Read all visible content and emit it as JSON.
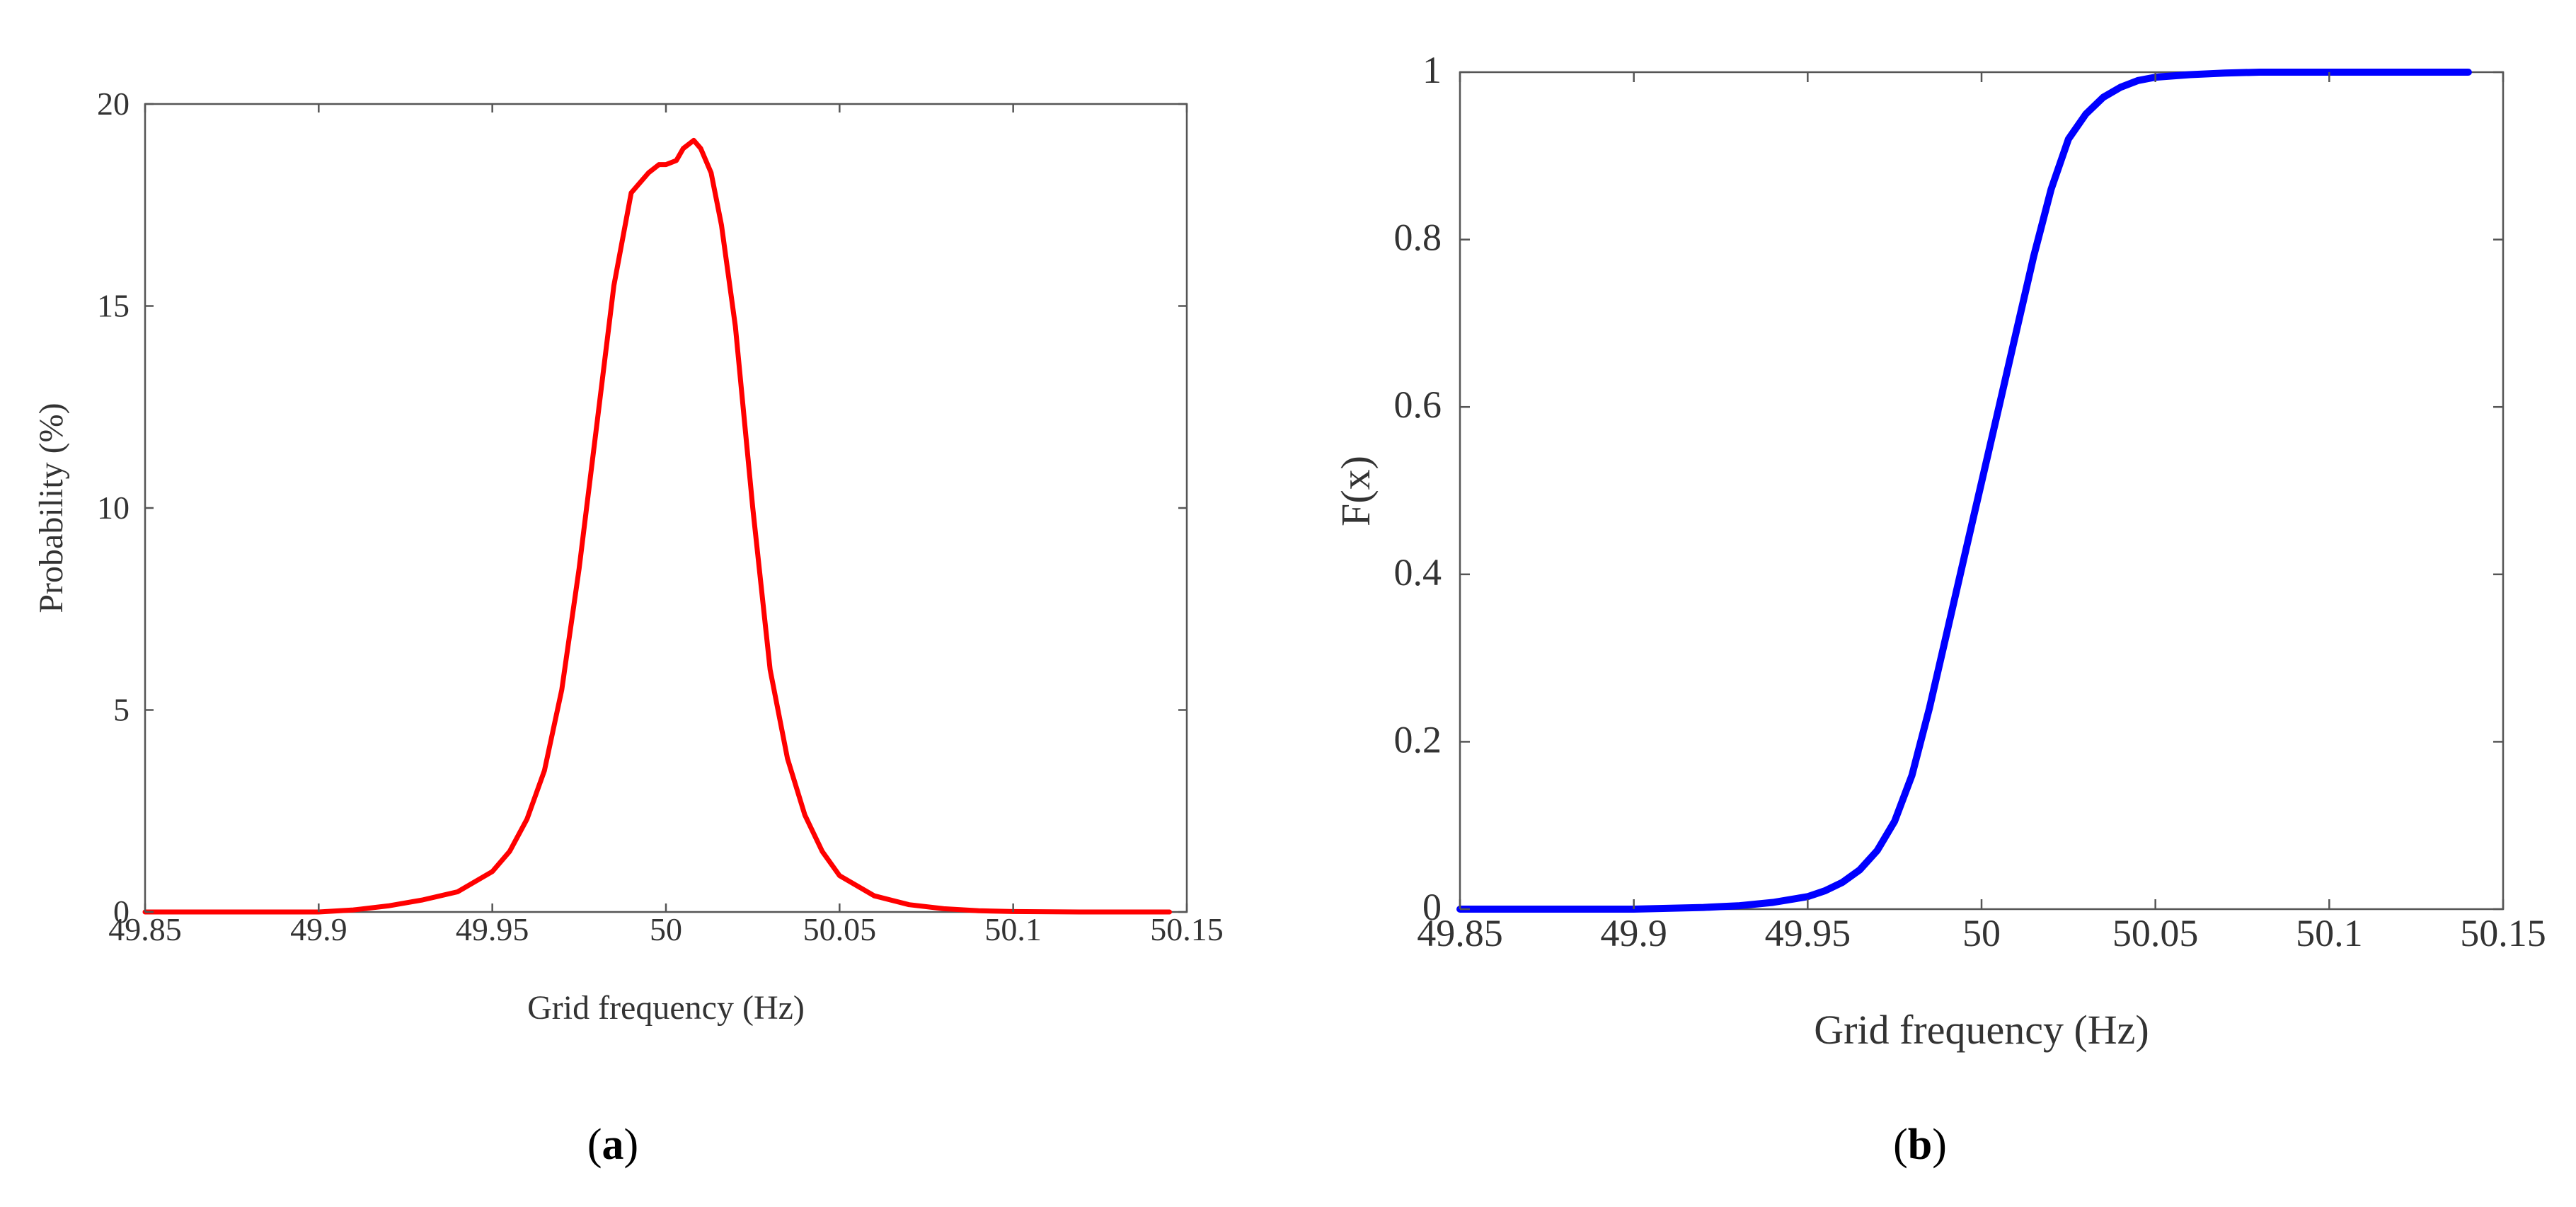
{
  "chart_data": [
    {
      "type": "line",
      "panel_label": "a",
      "title": "",
      "xlabel": "Grid frequency (Hz)",
      "ylabel": "Probability (%)",
      "xlim": [
        49.85,
        50.15
      ],
      "ylim": [
        0,
        20
      ],
      "xticks": [
        "49.85",
        "49.9",
        "49.95",
        "50",
        "50.05",
        "50.1",
        "50.15"
      ],
      "yticks": [
        "0",
        "5",
        "10",
        "15",
        "20"
      ],
      "grid": false,
      "series": [
        {
          "name": "Probability",
          "color": "#ff0000",
          "x": [
            49.85,
            49.9,
            49.91,
            49.92,
            49.93,
            49.94,
            49.95,
            49.955,
            49.96,
            49.965,
            49.97,
            49.975,
            49.98,
            49.985,
            49.99,
            49.995,
            49.998,
            50.0,
            50.003,
            50.005,
            50.008,
            50.01,
            50.013,
            50.016,
            50.02,
            50.025,
            50.03,
            50.035,
            50.04,
            50.045,
            50.05,
            50.06,
            50.07,
            50.08,
            50.09,
            50.1,
            50.12,
            50.145
          ],
          "y": [
            0,
            0,
            0.05,
            0.15,
            0.3,
            0.5,
            1.0,
            1.5,
            2.3,
            3.5,
            5.5,
            8.5,
            12.0,
            15.5,
            17.8,
            18.3,
            18.5,
            18.5,
            18.6,
            18.9,
            19.1,
            18.9,
            18.3,
            17.0,
            14.5,
            10.0,
            6.0,
            3.8,
            2.4,
            1.5,
            0.9,
            0.4,
            0.18,
            0.08,
            0.03,
            0.01,
            0,
            0
          ]
        }
      ]
    },
    {
      "type": "line",
      "panel_label": "b",
      "title": "",
      "xlabel": "Grid frequency (Hz)",
      "ylabel": "F(x)",
      "xlim": [
        49.85,
        50.15
      ],
      "ylim": [
        0,
        1
      ],
      "xticks": [
        "49.85",
        "49.9",
        "49.95",
        "50",
        "50.05",
        "50.1",
        "50.15"
      ],
      "yticks": [
        "0",
        "0.2",
        "0.4",
        "0.6",
        "0.8",
        "1"
      ],
      "grid": false,
      "series": [
        {
          "name": "F(x)",
          "color": "#0000ff",
          "x": [
            49.85,
            49.9,
            49.92,
            49.93,
            49.94,
            49.95,
            49.955,
            49.96,
            49.965,
            49.97,
            49.975,
            49.98,
            49.985,
            49.99,
            49.995,
            50.0,
            50.005,
            50.01,
            50.015,
            50.02,
            50.025,
            50.03,
            50.035,
            50.04,
            50.045,
            50.05,
            50.06,
            50.07,
            50.08,
            50.1,
            50.14
          ],
          "y": [
            0,
            0,
            0.002,
            0.004,
            0.008,
            0.015,
            0.022,
            0.032,
            0.047,
            0.07,
            0.105,
            0.16,
            0.24,
            0.33,
            0.42,
            0.51,
            0.6,
            0.69,
            0.78,
            0.86,
            0.92,
            0.95,
            0.97,
            0.982,
            0.99,
            0.994,
            0.997,
            0.999,
            1.0,
            1.0,
            1.0
          ]
        }
      ]
    }
  ]
}
